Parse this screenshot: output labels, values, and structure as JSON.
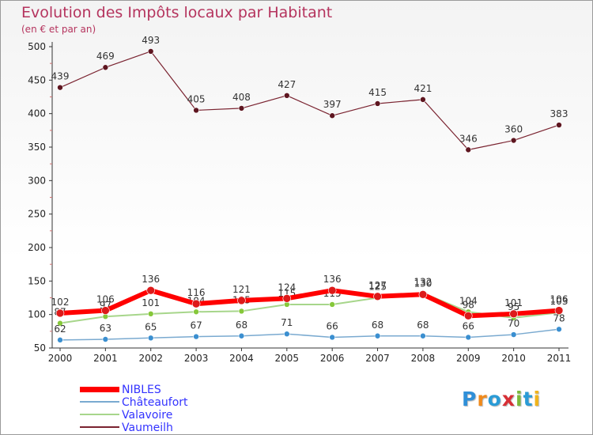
{
  "title": "Evolution des Impôts locaux par Habitant",
  "subtitle": "(en € et par an)",
  "logo": {
    "text": "Proxiti",
    "letter_colors": [
      "#2f8fd8",
      "#f08a1c",
      "#2a9bd6",
      "#d72f35",
      "#7cb83a",
      "#2a9bd6",
      "#f0b41c"
    ]
  },
  "chart_data": {
    "type": "line",
    "categories": [
      "2000",
      "2001",
      "2002",
      "2003",
      "2004",
      "2005",
      "2006",
      "2007",
      "2008",
      "2009",
      "2010",
      "2011"
    ],
    "ylim": [
      50,
      500
    ],
    "yticks": [
      "50",
      "100",
      "150",
      "200",
      "250",
      "300",
      "350",
      "400",
      "450",
      "500"
    ],
    "grid": false,
    "legend_position": "bottom-left",
    "series": [
      {
        "name": "Vaumeilh",
        "color": "#7a2330",
        "marker": "#5e1620",
        "width": 1.2,
        "values": [
          439,
          469,
          493,
          405,
          408,
          427,
          397,
          415,
          421,
          346,
          360,
          383
        ],
        "labels": [
          "439",
          "469",
          "493",
          "405",
          "408",
          "427",
          "397",
          "415",
          "421",
          "346",
          "360",
          "383"
        ]
      },
      {
        "name": "Valavoire",
        "color": "#a7d68b",
        "marker": "#86c83a",
        "width": 2,
        "values": [
          87,
          97,
          101,
          104,
          105,
          115,
          115,
          125,
          132,
          104,
          95,
          103
        ],
        "labels": [
          "87",
          "97",
          "101",
          "104",
          "105",
          "115",
          "115",
          "125",
          "132",
          "104",
          "95",
          "103"
        ]
      },
      {
        "name": "NIBLES",
        "color": "#ff0000",
        "marker": "#dd1a1a",
        "width": 6,
        "values": [
          102,
          106,
          136,
          116,
          121,
          124,
          136,
          127,
          130,
          98,
          101,
          106
        ],
        "labels": [
          "102",
          "106",
          "136",
          "116",
          "121",
          "124",
          "136",
          "127",
          "130",
          "98",
          "101",
          "106"
        ]
      },
      {
        "name": "Châteaufort",
        "color": "#7aaad0",
        "marker": "#3b8fd0",
        "width": 1.5,
        "values": [
          62,
          63,
          65,
          67,
          68,
          71,
          66,
          68,
          68,
          66,
          70,
          78
        ],
        "labels": [
          "62",
          "63",
          "65",
          "67",
          "68",
          "71",
          "66",
          "68",
          "68",
          "66",
          "70",
          "78"
        ]
      }
    ],
    "legend": [
      {
        "name": "NIBLES",
        "color": "#ff0000",
        "thickness": 7
      },
      {
        "name": "Châteaufort",
        "color": "#7aaad0",
        "thickness": 2
      },
      {
        "name": "Valavoire",
        "color": "#a7d68b",
        "thickness": 2
      },
      {
        "name": "Vaumeilh",
        "color": "#7a2330",
        "thickness": 2
      }
    ]
  }
}
